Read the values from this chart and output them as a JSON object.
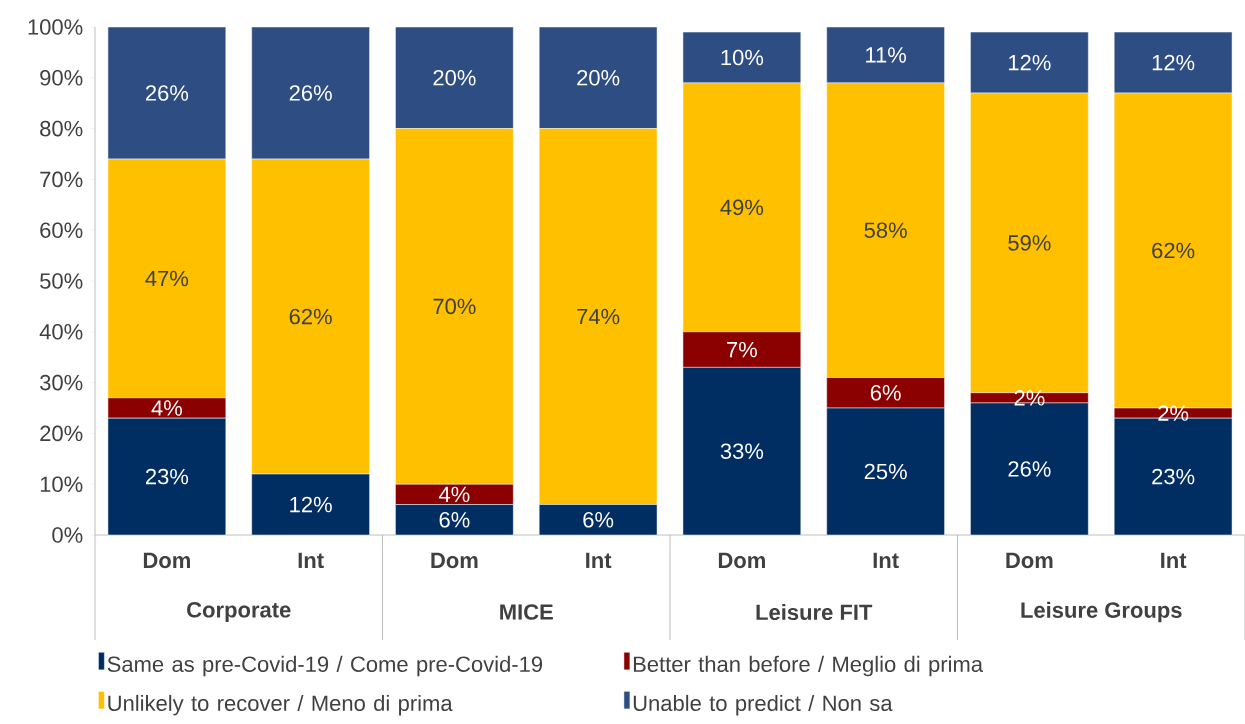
{
  "chart_data": {
    "type": "bar",
    "stacked": true,
    "categories": [
      "Dom",
      "Int",
      "Dom",
      "Int",
      "Dom",
      "Int",
      "Dom",
      "Int"
    ],
    "series": [
      {
        "name": "Same as pre-Covid-19 / Come pre-Covid-19",
        "color": "#002d62",
        "values": [
          23,
          12,
          6,
          6,
          33,
          25,
          26,
          23
        ],
        "value_labels": [
          "23%",
          "12%",
          "6%",
          "6%",
          "33%",
          "25%",
          "26%",
          "23%"
        ]
      },
      {
        "name": "Better than before / Meglio di prima",
        "color": "#8b0000",
        "values": [
          4,
          0,
          4,
          0,
          7,
          6,
          2,
          2
        ],
        "value_labels": [
          "4%",
          null,
          "4%",
          null,
          "7%",
          "6%",
          "2%",
          "2%"
        ]
      },
      {
        "name": "Unlikely to recover / Meno di prima",
        "color": "#ffc000",
        "values": [
          47,
          62,
          70,
          74,
          49,
          58,
          59,
          62
        ],
        "value_labels": [
          "47%",
          "62%",
          "70%",
          "74%",
          "49%",
          "58%",
          "59%",
          "62%"
        ]
      },
      {
        "name": "Unable to predict / Non sa",
        "color": "#2e4d82",
        "values": [
          26,
          26,
          20,
          20,
          10,
          11,
          12,
          12
        ],
        "value_labels": [
          "26%",
          "26%",
          "20%",
          "20%",
          "10%",
          "11%",
          "12%",
          "12%"
        ]
      }
    ],
    "annotations": [
      "Corporate",
      "MICE",
      "Leisure FIT",
      "Leisure Groups"
    ],
    "ylim": [
      0,
      100
    ],
    "yticks": [
      {
        "value": 0,
        "label": "0%"
      },
      {
        "value": 10,
        "label": "10%"
      },
      {
        "value": 20,
        "label": "20%"
      },
      {
        "value": 30,
        "label": "30%"
      },
      {
        "value": 40,
        "label": "40%"
      },
      {
        "value": 50,
        "label": "50%"
      },
      {
        "value": 60,
        "label": "60%"
      },
      {
        "value": 70,
        "label": "70%"
      },
      {
        "value": 80,
        "label": "80%"
      },
      {
        "value": 90,
        "label": "90%"
      },
      {
        "value": 100,
        "label": "100%"
      }
    ],
    "legend": "bottom"
  }
}
